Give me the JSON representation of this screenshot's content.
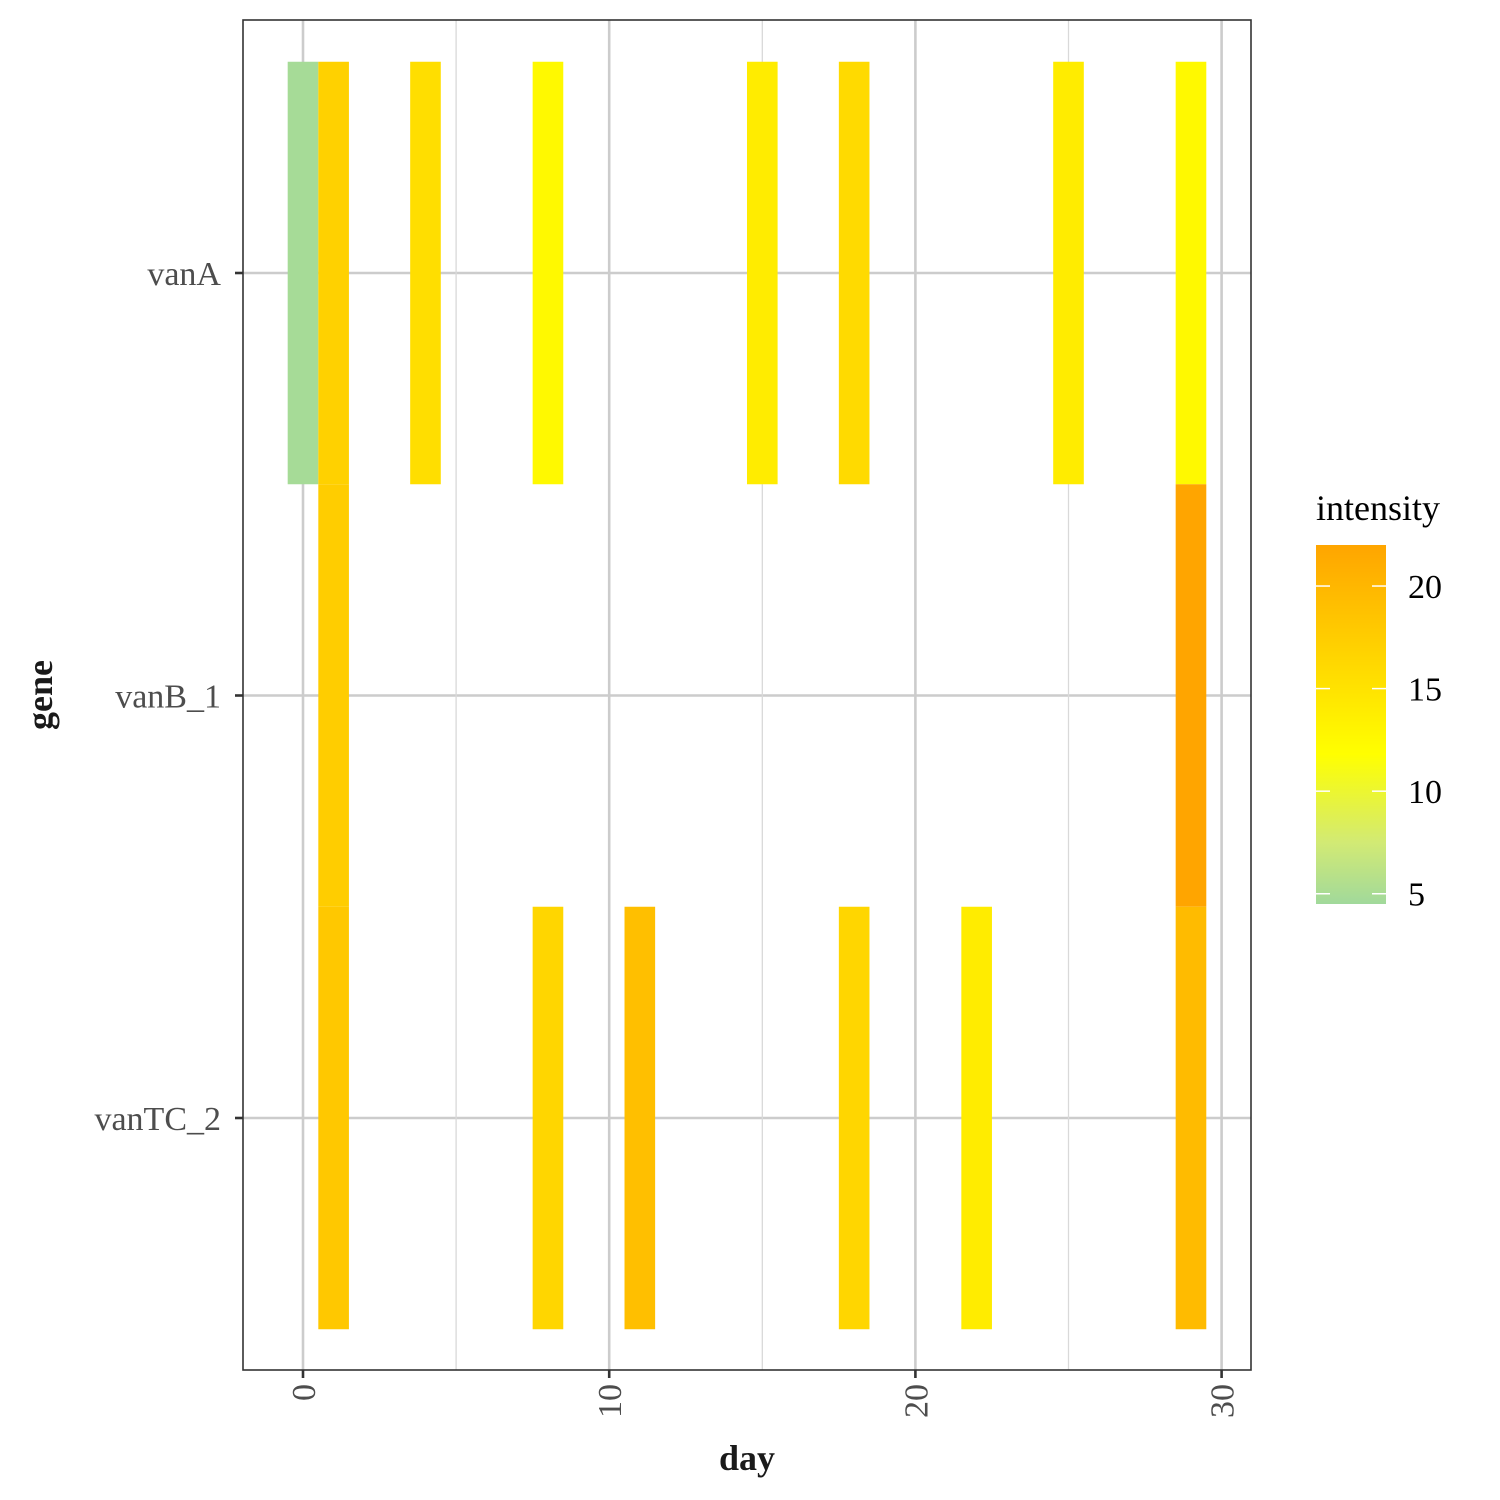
{
  "chart_data": {
    "type": "heatmap",
    "title": "",
    "xlabel": "day",
    "ylabel": "gene",
    "xlim": [
      -1.5,
      31
    ],
    "xticks": [
      0,
      10,
      20,
      30
    ],
    "x_minor_ticks": [
      5,
      15,
      25
    ],
    "genes": [
      "vanA",
      "vanB_1",
      "vanTC_2"
    ],
    "tile_width_days": 1,
    "grid": true,
    "legend": {
      "title": "intensity",
      "position": "right",
      "min": 4.5,
      "max": 22,
      "ticks": [
        5,
        10,
        15,
        20
      ],
      "color_stops": [
        {
          "value": 4.5,
          "color": "#a1d99b"
        },
        {
          "value": 7.5,
          "color": "#d2ea74"
        },
        {
          "value": 11.8,
          "color": "#ffff00"
        },
        {
          "value": 22,
          "color": "#ffa500"
        }
      ]
    },
    "tiles": [
      {
        "gene": "vanA",
        "day": 0,
        "intensity": 4.8
      },
      {
        "gene": "vanA",
        "day": 1,
        "intensity": 17
      },
      {
        "gene": "vanA",
        "day": 4,
        "intensity": 15.5
      },
      {
        "gene": "vanA",
        "day": 8,
        "intensity": 12.5
      },
      {
        "gene": "vanA",
        "day": 15,
        "intensity": 14
      },
      {
        "gene": "vanA",
        "day": 18,
        "intensity": 16
      },
      {
        "gene": "vanA",
        "day": 25,
        "intensity": 14
      },
      {
        "gene": "vanA",
        "day": 29,
        "intensity": 12.5
      },
      {
        "gene": "vanB_1",
        "day": 1,
        "intensity": 17.5
      },
      {
        "gene": "vanB_1",
        "day": 29,
        "intensity": 22
      },
      {
        "gene": "vanTC_2",
        "day": 1,
        "intensity": 18
      },
      {
        "gene": "vanTC_2",
        "day": 8,
        "intensity": 16.5
      },
      {
        "gene": "vanTC_2",
        "day": 11,
        "intensity": 19
      },
      {
        "gene": "vanTC_2",
        "day": 18,
        "intensity": 16.5
      },
      {
        "gene": "vanTC_2",
        "day": 22,
        "intensity": 14
      },
      {
        "gene": "vanTC_2",
        "day": 29,
        "intensity": 19.5
      }
    ]
  }
}
